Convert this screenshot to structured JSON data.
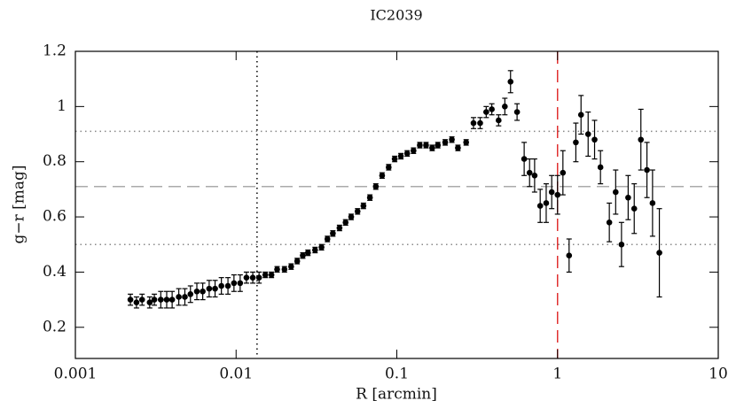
{
  "chart_data": {
    "type": "scatter",
    "title": "IC2039",
    "x_label": "R [arcmin]",
    "y_label": "g−r [mag]",
    "log_x": true,
    "xlim": [
      0.001,
      10
    ],
    "xticks": [
      0.001,
      0.01,
      0.1,
      1,
      10
    ],
    "ylim": [
      0.087,
      1.2
    ],
    "yticks": [
      0.2,
      0.4,
      0.6,
      0.8,
      1,
      1.2
    ],
    "hlines": [
      {
        "value": 0.91,
        "style": "dotted",
        "color": "#888888"
      },
      {
        "value": 0.71,
        "style": "dashed",
        "color": "#aaaaaa"
      },
      {
        "value": 0.5,
        "style": "dotted",
        "color": "#888888"
      }
    ],
    "vlines": [
      {
        "value": 0.0135,
        "style": "dotted",
        "color": "#000000"
      },
      {
        "value": 1,
        "style": "dashed",
        "color": "#e03030"
      }
    ],
    "series": [
      {
        "color": "#000000",
        "x": [
          0.0022,
          0.0024,
          0.0026,
          0.0029,
          0.0031,
          0.0034,
          0.0037,
          0.004,
          0.0044,
          0.0048,
          0.0052,
          0.0057,
          0.0062,
          0.0068,
          0.0074,
          0.0081,
          0.0089,
          0.0097,
          0.0106,
          0.0116,
          0.0127,
          0.0139,
          0.0152,
          0.0166,
          0.018,
          0.02,
          0.022,
          0.024,
          0.026,
          0.028,
          0.031,
          0.034,
          0.037,
          0.04,
          0.044,
          0.048,
          0.052,
          0.057,
          0.062,
          0.068,
          0.074,
          0.081,
          0.089,
          0.097,
          0.106,
          0.116,
          0.127,
          0.139,
          0.152,
          0.166,
          0.18,
          0.2,
          0.22,
          0.24,
          0.27,
          0.3,
          0.33,
          0.36,
          0.39,
          0.43,
          0.47,
          0.51,
          0.56,
          0.62,
          0.67,
          0.72,
          0.78,
          0.85,
          0.92,
          1.0,
          1.08,
          1.18,
          1.3,
          1.4,
          1.55,
          1.7,
          1.85,
          2.1,
          2.3,
          2.5,
          2.75,
          3.0,
          3.3,
          3.6,
          3.9,
          4.3
        ],
        "values": [
          0.3,
          0.29,
          0.3,
          0.29,
          0.3,
          0.3,
          0.3,
          0.3,
          0.31,
          0.31,
          0.32,
          0.33,
          0.33,
          0.34,
          0.34,
          0.35,
          0.35,
          0.36,
          0.36,
          0.38,
          0.38,
          0.38,
          0.39,
          0.39,
          0.41,
          0.41,
          0.42,
          0.44,
          0.46,
          0.47,
          0.48,
          0.49,
          0.52,
          0.54,
          0.56,
          0.58,
          0.6,
          0.62,
          0.64,
          0.67,
          0.71,
          0.75,
          0.78,
          0.81,
          0.82,
          0.83,
          0.84,
          0.86,
          0.86,
          0.85,
          0.86,
          0.87,
          0.88,
          0.85,
          0.87,
          0.94,
          0.94,
          0.98,
          0.99,
          0.95,
          1.0,
          1.09,
          0.98,
          0.81,
          0.76,
          0.75,
          0.64,
          0.65,
          0.69,
          0.68,
          0.76,
          0.46,
          0.87,
          0.97,
          0.9,
          0.88,
          0.78,
          0.58,
          0.69,
          0.5,
          0.67,
          0.63,
          0.88,
          0.77,
          0.65,
          0.47
        ],
        "errors": [
          0.02,
          0.02,
          0.02,
          0.02,
          0.02,
          0.03,
          0.03,
          0.03,
          0.03,
          0.03,
          0.03,
          0.03,
          0.03,
          0.03,
          0.03,
          0.03,
          0.03,
          0.03,
          0.03,
          0.02,
          0.02,
          0.02,
          0.01,
          0.01,
          0.01,
          0.01,
          0.01,
          0.01,
          0.01,
          0.01,
          0.01,
          0.01,
          0.01,
          0.01,
          0.01,
          0.01,
          0.01,
          0.01,
          0.01,
          0.01,
          0.01,
          0.01,
          0.01,
          0.01,
          0.01,
          0.01,
          0.01,
          0.01,
          0.01,
          0.01,
          0.01,
          0.01,
          0.01,
          0.01,
          0.01,
          0.02,
          0.02,
          0.02,
          0.02,
          0.02,
          0.03,
          0.04,
          0.03,
          0.06,
          0.05,
          0.06,
          0.06,
          0.07,
          0.06,
          0.07,
          0.08,
          0.06,
          0.07,
          0.07,
          0.08,
          0.07,
          0.06,
          0.07,
          0.08,
          0.08,
          0.08,
          0.09,
          0.11,
          0.1,
          0.12,
          0.16
        ]
      }
    ]
  }
}
